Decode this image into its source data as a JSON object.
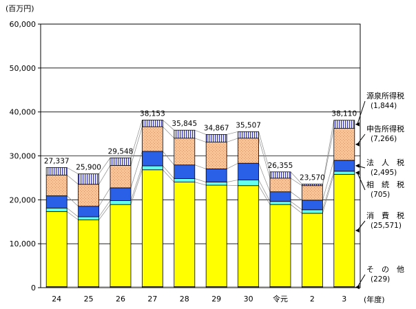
{
  "chart_data": {
    "type": "bar",
    "stacked": true,
    "yunit": "(百万円)",
    "xunit": "(年度)",
    "ylim": [
      0,
      60000
    ],
    "yticks": [
      "0",
      "10,000",
      "20,000",
      "30,000",
      "40,000",
      "50,000",
      "60,000"
    ],
    "grid": true,
    "categories": [
      "24",
      "25",
      "26",
      "27",
      "28",
      "29",
      "30",
      "令元",
      "2",
      "3"
    ],
    "totals": [
      27337,
      25900,
      29548,
      38153,
      35845,
      34867,
      35507,
      26355,
      23570,
      38110
    ],
    "total_labels": [
      "27,337",
      "25,900",
      "29,548",
      "38,153",
      "35,845",
      "34,867",
      "35,507",
      "26,355",
      "23,570",
      "38,110"
    ],
    "series": [
      {
        "name": "その他",
        "key": "other",
        "values": [
          229,
          229,
          229,
          229,
          229,
          229,
          229,
          229,
          229,
          229
        ]
      },
      {
        "name": "消費税",
        "key": "consumption",
        "values": [
          17100,
          15200,
          18700,
          26600,
          23800,
          23100,
          23000,
          18700,
          16700,
          25571
        ]
      },
      {
        "name": "相続税",
        "key": "inheritance",
        "values": [
          800,
          700,
          900,
          900,
          800,
          700,
          1300,
          700,
          800,
          705
        ]
      },
      {
        "name": "法人税",
        "key": "corporate",
        "values": [
          2800,
          2400,
          2900,
          3300,
          3100,
          3000,
          3800,
          2200,
          2200,
          2495
        ]
      },
      {
        "name": "申告所得税",
        "key": "selfassessed",
        "values": [
          4700,
          5000,
          5100,
          5600,
          6100,
          6100,
          5700,
          3100,
          3300,
          7266
        ]
      },
      {
        "name": "源泉所得税",
        "key": "withholding",
        "values": [
          1708,
          2371,
          1719,
          1524,
          1816,
          1738,
          1478,
          1426,
          341,
          1844
        ]
      }
    ],
    "legend": [
      {
        "name": "源泉所得税",
        "value": "(1,844)",
        "key": "withholding"
      },
      {
        "name": "申告所得税",
        "value": "(7,266)",
        "key": "selfassessed"
      },
      {
        "name": "法　人　税",
        "value": "(2,495)",
        "key": "corporate"
      },
      {
        "name": "相　続　税",
        "value": "(705)",
        "key": "inheritance"
      },
      {
        "name": "消　費　税",
        "value": "(25,571)",
        "key": "consumption"
      },
      {
        "name": "そ　の　他",
        "value": "(229)",
        "key": "other"
      }
    ],
    "legend_placement": "right"
  },
  "colors": {
    "other": "#1a8a2a",
    "consumption": "#ffff00",
    "inheritance": "#66ffee",
    "corporate": "#2a5fe8",
    "selfassessed_bg": "#f2d9bd",
    "selfassessed_dot": "#c87a4a",
    "withholding_bg": "#ffffff",
    "withholding_line": "#3a3ab0",
    "grid": "#000000",
    "connector": "#8a8a8a"
  }
}
